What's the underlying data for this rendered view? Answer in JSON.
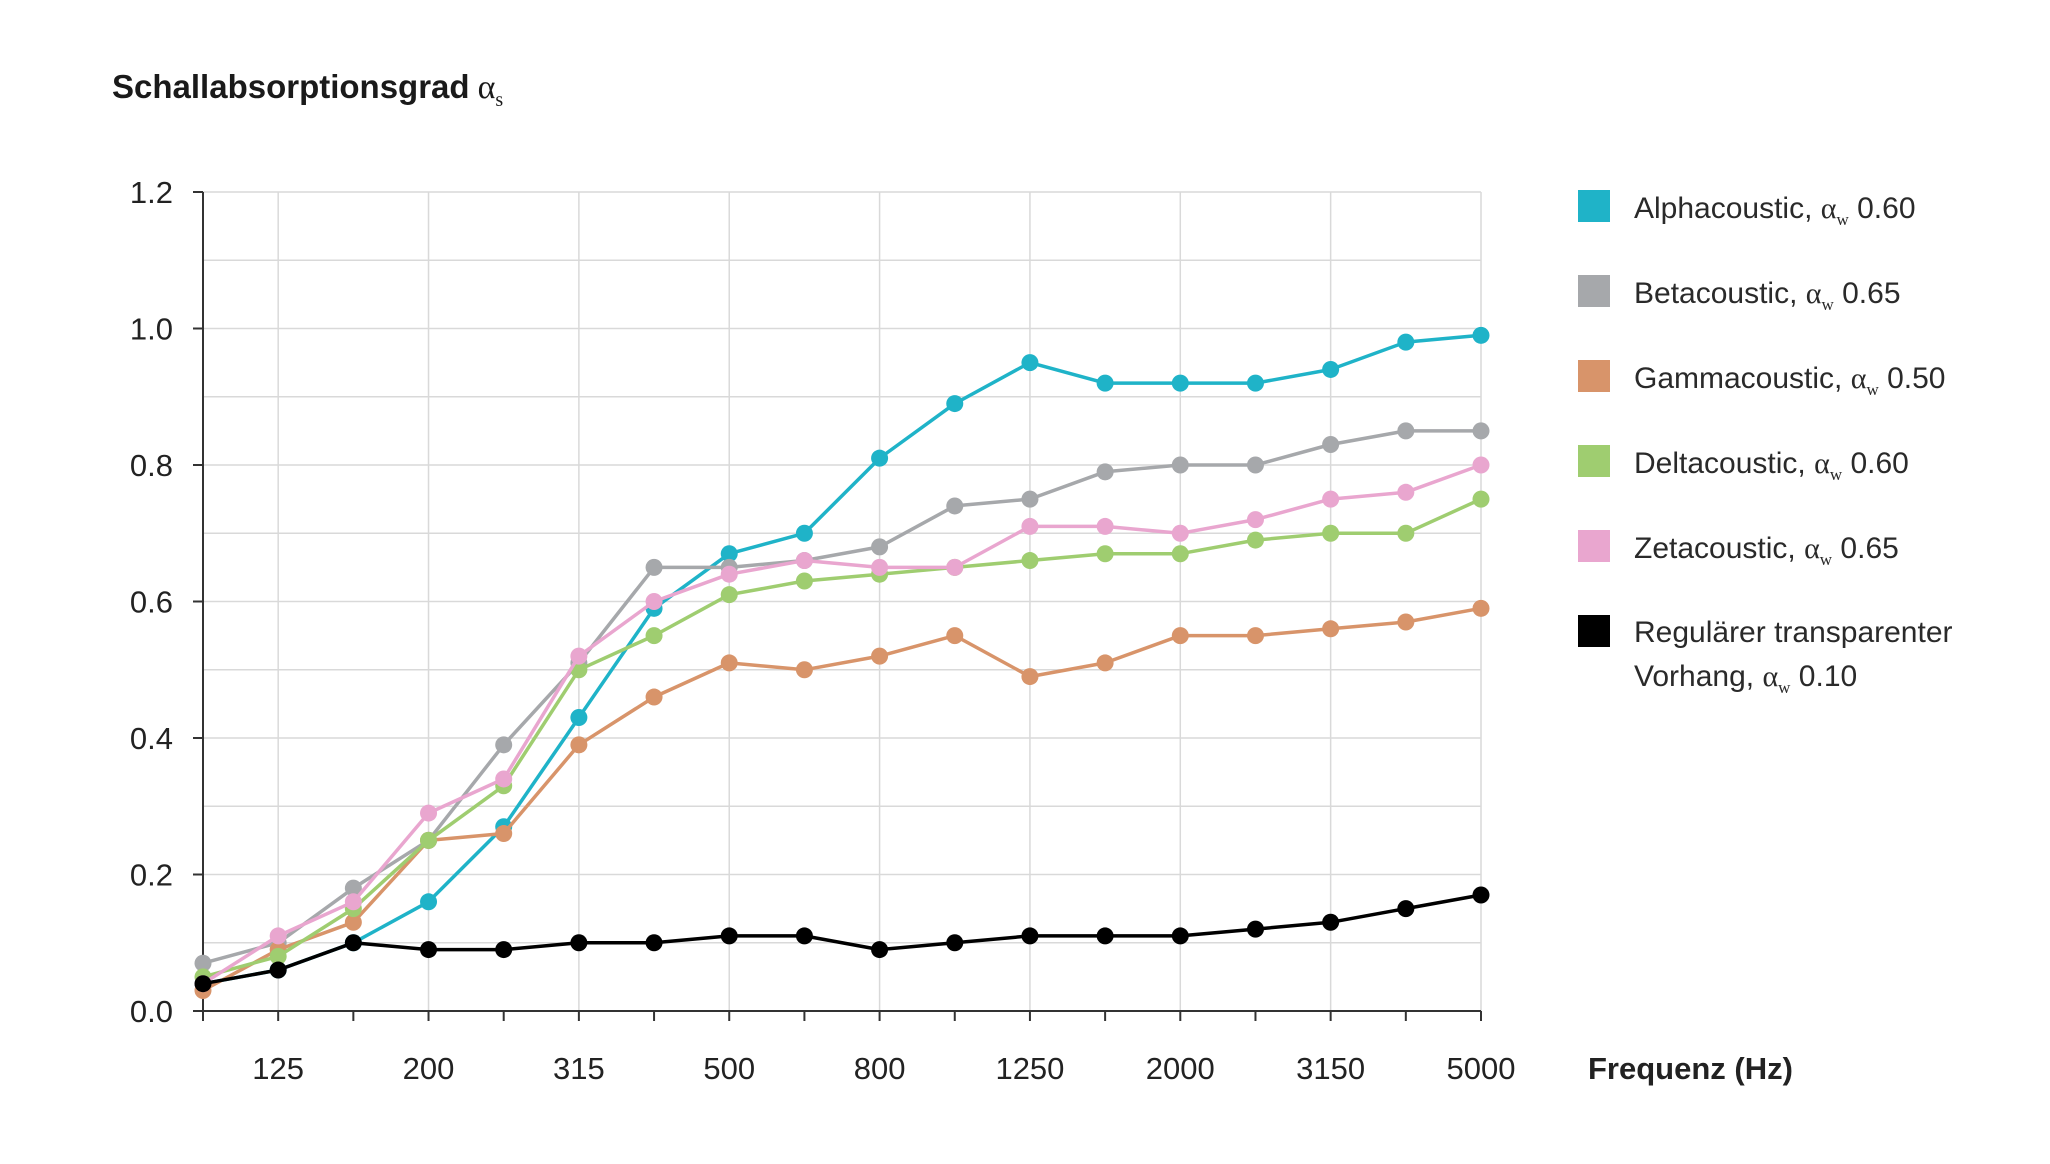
{
  "title": {
    "main": "Schallabsorptionsgrad",
    "alpha": "α",
    "subscript": "s"
  },
  "chart_data": {
    "type": "line",
    "xlabel": "Frequenz (Hz)",
    "ylabel": "",
    "ylim": [
      0,
      1.2
    ],
    "yticks": [
      "0.0",
      "0.2",
      "0.4",
      "0.6",
      "0.8",
      "1.0",
      "1.2"
    ],
    "x": [
      100,
      125,
      160,
      200,
      250,
      315,
      400,
      500,
      630,
      800,
      1000,
      1250,
      1600,
      2000,
      2500,
      3150,
      4000,
      5000
    ],
    "xtick_labels": [
      "125",
      "200",
      "315",
      "500",
      "800",
      "1250",
      "2000",
      "3150",
      "5000"
    ],
    "grid": true,
    "legend_placement": "right",
    "series": [
      {
        "name": "Alphacoustic",
        "rating": "0.60",
        "color": "#1fb3c8",
        "values": [
          0.04,
          0.06,
          0.1,
          0.16,
          0.27,
          0.43,
          0.59,
          0.67,
          0.7,
          0.81,
          0.89,
          0.95,
          0.92,
          0.92,
          0.92,
          0.94,
          0.98,
          0.99
        ]
      },
      {
        "name": "Betacoustic",
        "rating": "0.65",
        "color": "#a6a8ab",
        "values": [
          0.07,
          0.1,
          0.18,
          0.25,
          0.39,
          0.51,
          0.65,
          0.65,
          0.66,
          0.68,
          0.74,
          0.75,
          0.79,
          0.8,
          0.8,
          0.83,
          0.85,
          0.85
        ]
      },
      {
        "name": "Gammacoustic",
        "rating": "0.50",
        "color": "#d8946a",
        "values": [
          0.03,
          0.09,
          0.13,
          0.25,
          0.26,
          0.39,
          0.46,
          0.51,
          0.5,
          0.52,
          0.55,
          0.49,
          0.51,
          0.55,
          0.55,
          0.56,
          0.57,
          0.59
        ]
      },
      {
        "name": "Deltacoustic",
        "rating": "0.60",
        "color": "#9fcd70",
        "values": [
          0.05,
          0.08,
          0.15,
          0.25,
          0.33,
          0.5,
          0.55,
          0.61,
          0.63,
          0.64,
          0.65,
          0.66,
          0.67,
          0.67,
          0.69,
          0.7,
          0.7,
          0.75
        ]
      },
      {
        "name": "Zetacoustic",
        "rating": "0.65",
        "color": "#e9a6cf",
        "values": [
          0.04,
          0.11,
          0.16,
          0.29,
          0.34,
          0.52,
          0.6,
          0.64,
          0.66,
          0.65,
          0.65,
          0.71,
          0.71,
          0.7,
          0.72,
          0.75,
          0.76,
          0.8
        ]
      },
      {
        "name": "Regulärer transparenter Vorhang",
        "rating": "0.10",
        "color": "#000000",
        "values": [
          0.04,
          0.06,
          0.1,
          0.09,
          0.09,
          0.1,
          0.1,
          0.11,
          0.11,
          0.09,
          0.1,
          0.11,
          0.11,
          0.11,
          0.12,
          0.13,
          0.15,
          0.17
        ]
      }
    ]
  },
  "legend": {
    "aw_symbol": "α",
    "aw_sub": "w",
    "items": [
      {
        "name": "Alphacoustic,",
        "rating": "0.60",
        "color": "#1fb3c8"
      },
      {
        "name": "Betacoustic,",
        "rating": "0.65",
        "color": "#a6a8ab"
      },
      {
        "name": "Gammacoustic,",
        "rating": "0.50",
        "color": "#d8946a"
      },
      {
        "name": "Deltacoustic,",
        "rating": "0.60",
        "color": "#9fcd70"
      },
      {
        "name": "Zetacoustic,",
        "rating": "0.65",
        "color": "#e9a6cf"
      },
      {
        "name_line1": "Regulärer transparenter",
        "name_line2": "Vorhang,",
        "rating": "0.10",
        "color": "#000000"
      }
    ]
  }
}
